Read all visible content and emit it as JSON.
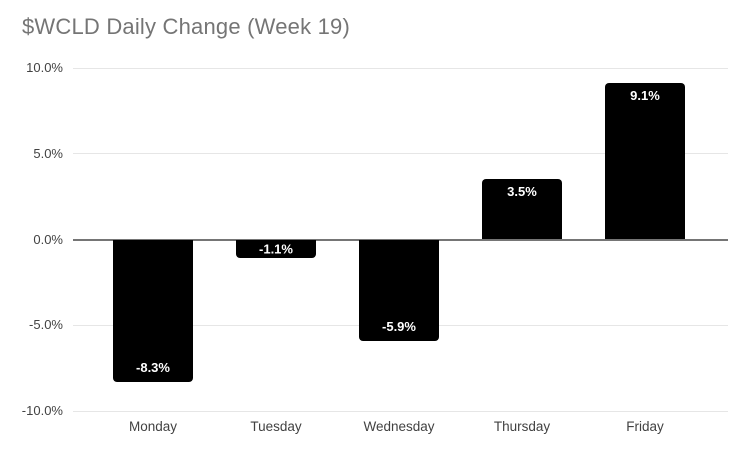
{
  "chart_data": {
    "type": "bar",
    "title": "$WCLD Daily Change (Week 19)",
    "categories": [
      "Monday",
      "Tuesday",
      "Wednesday",
      "Thursday",
      "Friday"
    ],
    "values": [
      -8.3,
      -1.1,
      -5.9,
      3.5,
      9.1
    ],
    "bar_labels": [
      "-8.3%",
      "-1.1%",
      "-5.9%",
      "3.5%",
      "9.1%"
    ],
    "xlabel": "",
    "ylabel": "",
    "ylim": [
      -10,
      10
    ],
    "y_ticks": [
      {
        "value": 10,
        "label": "10.0%"
      },
      {
        "value": 5,
        "label": "5.0%"
      },
      {
        "value": 0,
        "label": "0.0%"
      },
      {
        "value": -5,
        "label": "-5.0%"
      },
      {
        "value": -10,
        "label": "-10.0%"
      }
    ],
    "grid": true,
    "legend_position": "none",
    "colors": {
      "bar": "#000000",
      "bar_label": "#ffffff",
      "grid": "#e6e6e6",
      "zero_line": "#757575",
      "title": "#757575",
      "tick_label": "#424242",
      "background": "#ffffff"
    }
  }
}
